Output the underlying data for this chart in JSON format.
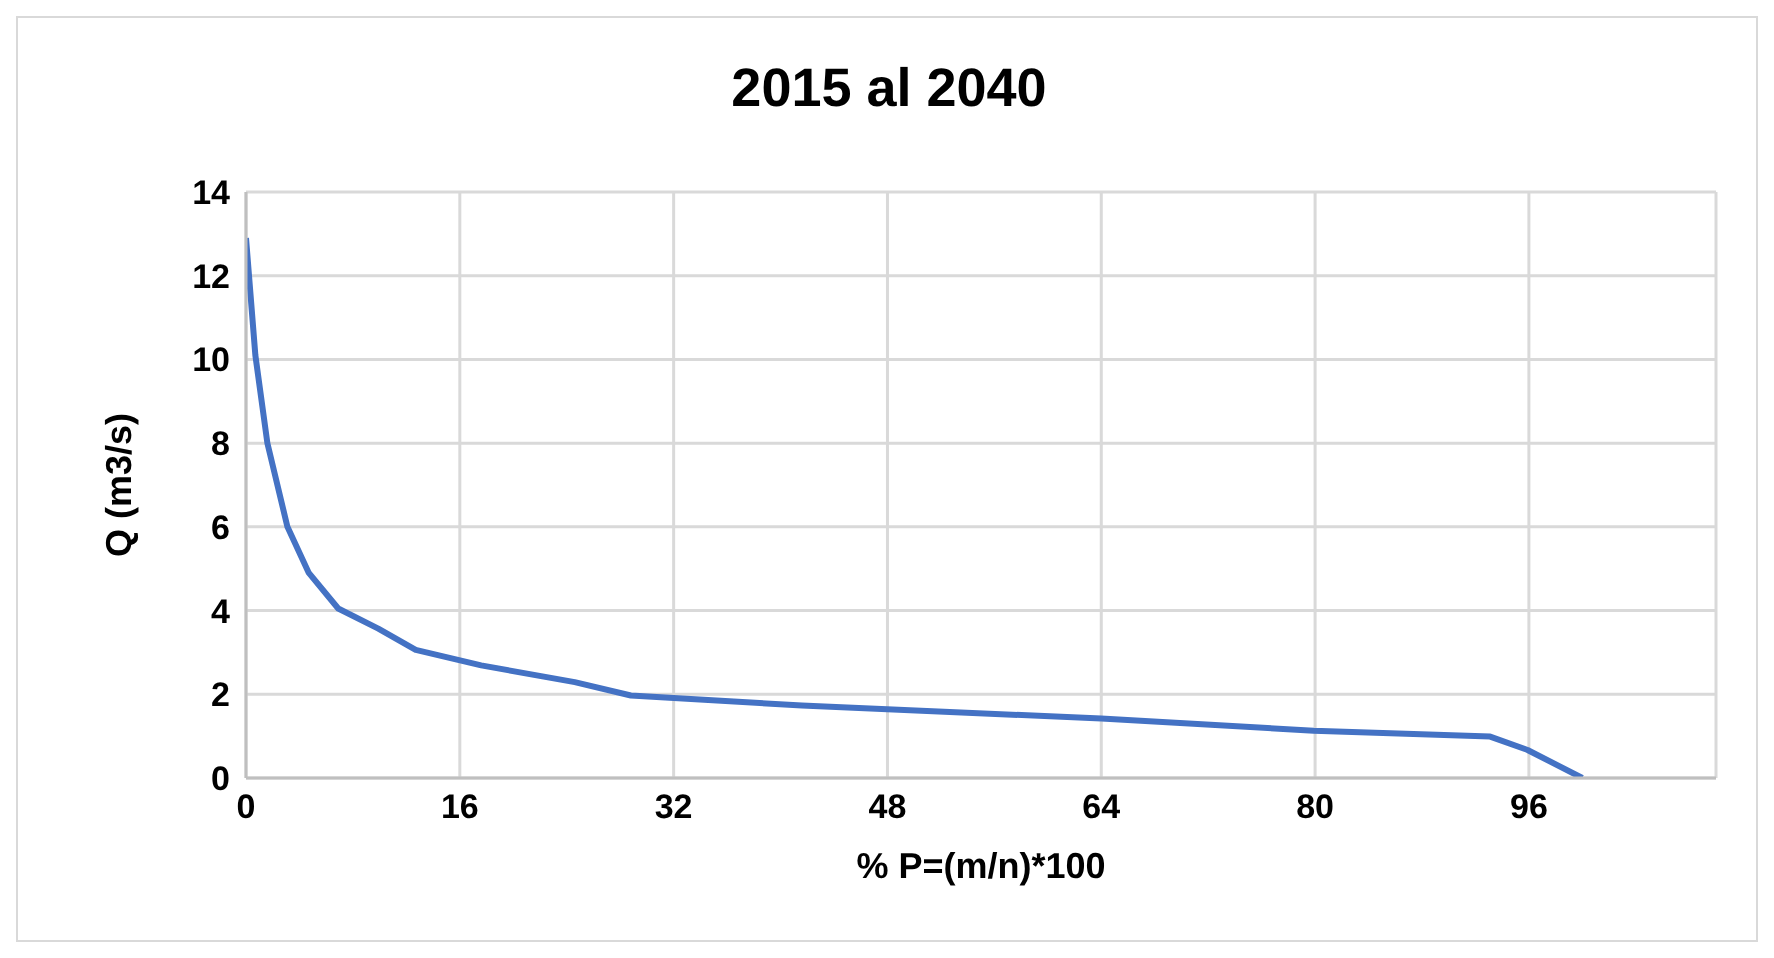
{
  "chart_data": {
    "type": "line",
    "title": "2015 al 2040",
    "xlabel": "% P=(m/n)*100",
    "ylabel": "Q (m3/s)",
    "xlim": [
      0,
      110
    ],
    "xticks": [
      0,
      16,
      32,
      48,
      64,
      80,
      96
    ],
    "ylim": [
      0,
      14
    ],
    "yticks": [
      0,
      2,
      4,
      6,
      8,
      10,
      12,
      14
    ],
    "grid": true,
    "marker": "none",
    "line_style": "solid",
    "series": [
      {
        "color": "#4472c4",
        "x": [
          0,
          0.3,
          0.7,
          1.6,
          3.1,
          4.7,
          6.9,
          9.9,
          12.7,
          17.6,
          24.6,
          28.8,
          41.6,
          64,
          79.9,
          93.1,
          95.9,
          100
        ],
        "values": [
          12.9,
          11.7,
          10.1,
          8.0,
          6.0,
          4.9,
          4.05,
          3.57,
          3.06,
          2.69,
          2.29,
          1.97,
          1.73,
          1.42,
          1.13,
          0.99,
          0.67,
          0
        ]
      }
    ]
  }
}
